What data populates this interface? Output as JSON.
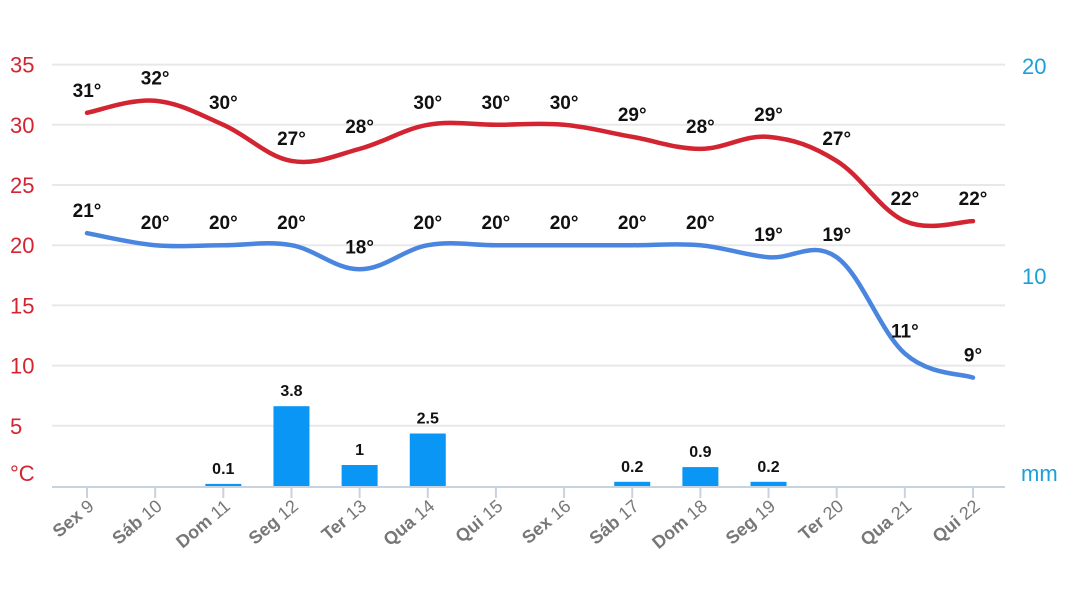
{
  "chart_data": {
    "type": "line",
    "categories": [
      {
        "day": "Sex",
        "date": "9"
      },
      {
        "day": "Sáb",
        "date": "10"
      },
      {
        "day": "Dom",
        "date": "11"
      },
      {
        "day": "Seg",
        "date": "12"
      },
      {
        "day": "Ter",
        "date": "13"
      },
      {
        "day": "Qua",
        "date": "14"
      },
      {
        "day": "Qui",
        "date": "15"
      },
      {
        "day": "Sex",
        "date": "16"
      },
      {
        "day": "Sáb",
        "date": "17"
      },
      {
        "day": "Dom",
        "date": "18"
      },
      {
        "day": "Seg",
        "date": "19"
      },
      {
        "day": "Ter",
        "date": "20"
      },
      {
        "day": "Qua",
        "date": "21"
      },
      {
        "day": "Qui",
        "date": "22"
      }
    ],
    "series": [
      {
        "values": [
          31,
          32,
          30,
          27,
          28,
          30,
          30,
          30,
          29,
          28,
          29,
          27,
          22,
          22
        ],
        "labels": [
          "31°",
          "32°",
          "30°",
          "27°",
          "28°",
          "30°",
          "30°",
          "30°",
          "29°",
          "28°",
          "29°",
          "27°",
          "22°",
          "22°"
        ],
        "color": "#d32431",
        "axis": "left"
      },
      {
        "values": [
          21,
          20,
          20,
          20,
          18,
          20,
          20,
          20,
          20,
          20,
          19,
          19,
          11,
          9
        ],
        "labels": [
          "21°",
          "20°",
          "20°",
          "20°",
          "18°",
          "20°",
          "20°",
          "20°",
          "20°",
          "20°",
          "19°",
          "19°",
          "11°",
          "9°"
        ],
        "color": "#4a86e0",
        "axis": "left"
      },
      {
        "type": "bar",
        "values": [
          null,
          null,
          0.1,
          3.8,
          1,
          2.5,
          null,
          null,
          0.2,
          0.9,
          0.2,
          null,
          null,
          null
        ],
        "labels": [
          "",
          "",
          "0.1",
          "3.8",
          "1",
          "2.5",
          "",
          "",
          "0.2",
          "0.9",
          "0.2",
          "",
          "",
          ""
        ],
        "color": "#0a96f5",
        "axis": "right"
      }
    ],
    "left_axis": {
      "ticks": [
        "35",
        "30",
        "25",
        "20",
        "15",
        "10",
        "5"
      ],
      "unit": "°C",
      "color": "#d32431",
      "ylim": [
        0,
        35
      ]
    },
    "right_axis": {
      "ticks": [
        "20",
        "10"
      ],
      "unit": "mm",
      "color": "#1a9fd8",
      "ylim": [
        0,
        20
      ]
    },
    "grid": true
  }
}
